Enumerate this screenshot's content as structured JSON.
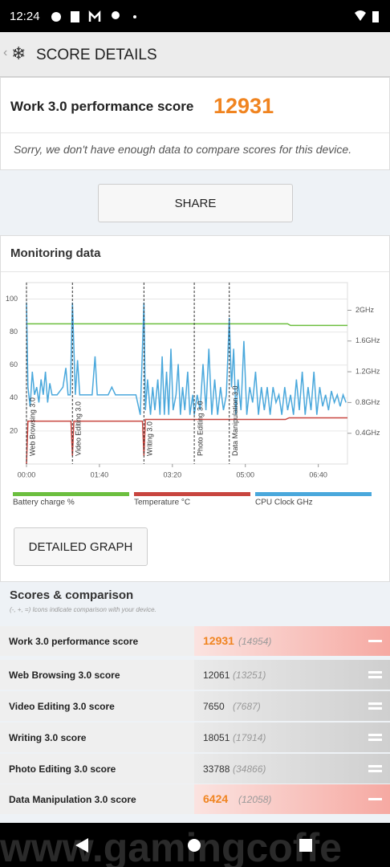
{
  "status_bar": {
    "time": "12:24"
  },
  "app_bar": {
    "title": "SCORE DETAILS"
  },
  "score_card": {
    "label": "Work 3.0 performance score",
    "score": 12931,
    "note": "Sorry, we don't have enough data to compare scores for this device."
  },
  "share_button": "SHARE",
  "monitoring_title": "Monitoring data",
  "chart_data": {
    "type": "line",
    "xlim": [
      0,
      440
    ],
    "xticks": [
      {
        "value": 0,
        "label": "00:00"
      },
      {
        "value": 100,
        "label": "01:40"
      },
      {
        "value": 200,
        "label": "03:20"
      },
      {
        "value": 300,
        "label": "05:00"
      },
      {
        "value": 400,
        "label": "06:40"
      }
    ],
    "ylim": [
      0,
      110
    ],
    "yticks": [
      20,
      40,
      60,
      80,
      100
    ],
    "y2lim": [
      0,
      2.36
    ],
    "y2ticks": [
      {
        "value": 0.4,
        "label": "0.4GHz"
      },
      {
        "value": 0.8,
        "label": "0.8GHz"
      },
      {
        "value": 1.2,
        "label": "1.2GHz"
      },
      {
        "value": 1.6,
        "label": "1.6GHz"
      },
      {
        "value": 2,
        "label": "2GHz"
      }
    ],
    "grid": true,
    "series": [
      {
        "name": "Battery charge %",
        "color": "#6cbf3f",
        "x": [
          0,
          358,
          362,
          440
        ],
        "values": [
          85,
          85,
          84,
          84
        ]
      },
      {
        "name": "Temperature °C",
        "color": "#c8453f",
        "x": [
          0,
          2,
          61,
          63,
          65,
          159,
          161,
          163,
          355,
          360,
          440
        ],
        "values": [
          0,
          26,
          26,
          5,
          26,
          26,
          5,
          27,
          27,
          28,
          28
        ]
      },
      {
        "name": "CPU Clock GHz",
        "color": "#4aa8dc",
        "axis": "y2",
        "x": [
          0,
          2,
          5,
          8,
          11,
          14,
          17,
          20,
          23,
          26,
          29,
          32,
          35,
          38,
          42,
          46,
          50,
          54,
          57,
          60,
          63,
          65,
          67,
          70,
          73,
          78,
          84,
          90,
          94,
          97,
          102,
          108,
          112,
          117,
          122,
          128,
          135,
          143,
          150,
          156,
          161,
          163,
          166,
          170,
          173,
          176,
          180,
          183,
          186,
          189,
          192,
          195,
          198,
          201,
          205,
          208,
          211,
          214,
          217,
          221,
          224,
          228,
          230,
          234,
          238,
          242,
          246,
          250,
          254,
          258,
          262,
          266,
          270,
          274,
          278,
          281,
          284,
          287,
          290,
          294,
          298,
          302,
          306,
          310,
          314,
          318,
          322,
          326,
          330,
          334,
          338,
          342,
          346,
          350,
          354,
          358,
          362,
          366,
          370,
          374,
          378,
          382,
          386,
          390,
          394,
          398,
          402,
          406,
          410,
          414,
          418,
          422,
          426,
          430,
          434,
          438
        ],
        "values": [
          2.1,
          1.0,
          0.75,
          1.2,
          0.9,
          1.0,
          0.8,
          1.1,
          0.9,
          1.2,
          0.8,
          1.05,
          0.9,
          0.9,
          0.9,
          0.95,
          1.0,
          1.25,
          0.9,
          0.9,
          2.1,
          1.5,
          0.9,
          1.35,
          0.9,
          0.9,
          0.9,
          0.9,
          1.4,
          0.9,
          0.9,
          0.9,
          0.9,
          1.0,
          0.9,
          0.9,
          0.9,
          0.9,
          0.9,
          0.64,
          2.1,
          0.7,
          1.1,
          0.64,
          1.0,
          0.7,
          1.1,
          0.64,
          1.4,
          0.64,
          1.2,
          0.64,
          1.5,
          0.7,
          0.9,
          1.3,
          0.64,
          1.0,
          0.7,
          1.2,
          0.64,
          0.9,
          0.64,
          0.9,
          0.7,
          1.3,
          0.7,
          1.5,
          0.64,
          1.1,
          0.64,
          1.0,
          0.7,
          0.9,
          1.9,
          1.0,
          1.5,
          0.64,
          1.1,
          0.7,
          1.6,
          0.64,
          1.0,
          0.8,
          1.2,
          0.64,
          1.0,
          0.7,
          1.0,
          0.64,
          1.0,
          0.8,
          0.9,
          0.64,
          1.0,
          0.7,
          0.9,
          0.64,
          1.1,
          0.7,
          1.2,
          0.64,
          1.0,
          0.7,
          1.2,
          0.64,
          1.0,
          0.75,
          0.9,
          0.7,
          0.95,
          0.8,
          0.9,
          0.75,
          0.9,
          0.8
        ]
      }
    ],
    "annotations": [
      {
        "x": 0,
        "label": "Web Browsing 3.0"
      },
      {
        "x": 63,
        "label": "Video Editing 3.0"
      },
      {
        "x": 161,
        "label": "Writing 3.0"
      },
      {
        "x": 230,
        "label": "Photo Editing 3.0"
      },
      {
        "x": 278,
        "label": "Data Manipulation 3.0"
      }
    ]
  },
  "detailed_graph_button": "DETAILED GRAPH",
  "scores": {
    "title": "Scores & comparison",
    "subtitle": "(-, +, =) Icons indicate comparison with your device.",
    "rows": [
      {
        "name": "Work 3.0 performance score",
        "score": 12931,
        "reference": "(14954)",
        "status": "lower"
      },
      {
        "name": "Web Browsing 3.0 score",
        "score": 12061,
        "reference": "(13251)",
        "status": "equal"
      },
      {
        "name": "Video Editing 3.0 score",
        "score": 7650,
        "reference": "(7687)",
        "status": "equal"
      },
      {
        "name": "Writing 3.0 score",
        "score": 18051,
        "reference": "(17914)",
        "status": "equal"
      },
      {
        "name": "Photo Editing 3.0 score",
        "score": 33788,
        "reference": "(34866)",
        "status": "equal"
      },
      {
        "name": "Data Manipulation 3.0 score",
        "score": 6424,
        "reference": "(12058)",
        "status": "lower"
      }
    ]
  },
  "watermark": "www.gamingcoffe"
}
